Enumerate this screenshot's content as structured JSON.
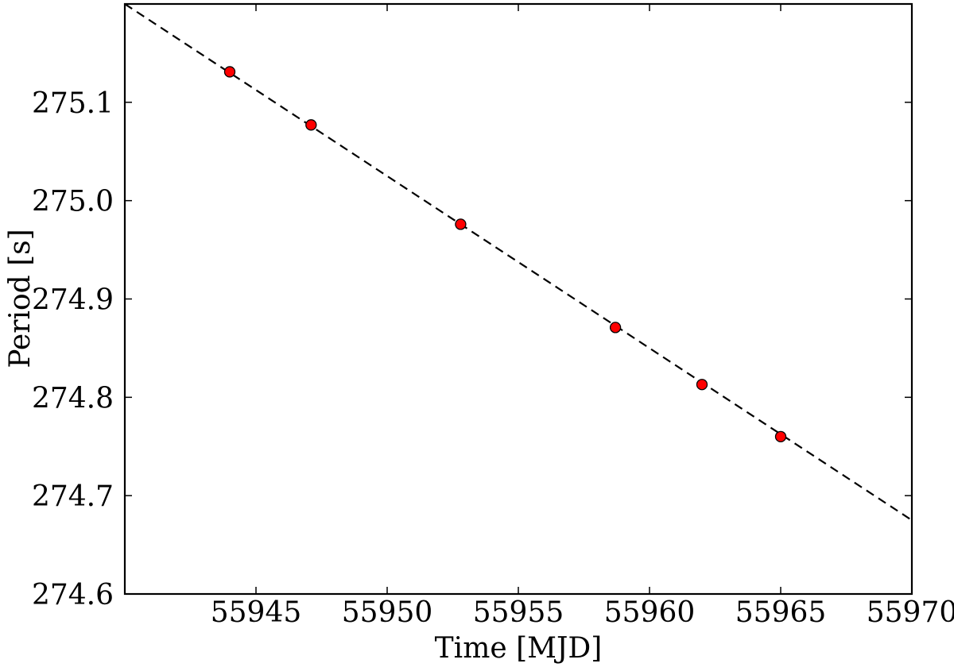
{
  "chart_data": {
    "type": "scatter",
    "title": "",
    "xlabel": "Time [MJD]",
    "ylabel": "Period [s]",
    "xlim": [
      55940,
      55970
    ],
    "ylim": [
      274.6,
      275.2
    ],
    "xticks": [
      55945,
      55950,
      55955,
      55960,
      55965,
      55970
    ],
    "xtick_labels": [
      "55945",
      "55950",
      "55955",
      "55960",
      "55965",
      "55970"
    ],
    "yticks": [
      274.6,
      274.7,
      274.8,
      274.9,
      275.0,
      275.1
    ],
    "ytick_labels": [
      "274.6",
      "274.7",
      "274.8",
      "274.9",
      "275.0",
      "275.1"
    ],
    "grid": false,
    "series": [
      {
        "kind": "points",
        "marker": "circle",
        "color": "#ff0000",
        "edge_color": "#000000",
        "x": [
          55944.0,
          55947.1,
          55952.8,
          55958.7,
          55962.0,
          55965.0
        ],
        "y": [
          275.131,
          275.077,
          274.976,
          274.871,
          274.813,
          274.76
        ]
      },
      {
        "kind": "fit-line",
        "style": "dashed",
        "color": "#000000",
        "x": [
          55940,
          55970
        ],
        "y": [
          275.2,
          274.675
        ]
      }
    ]
  }
}
